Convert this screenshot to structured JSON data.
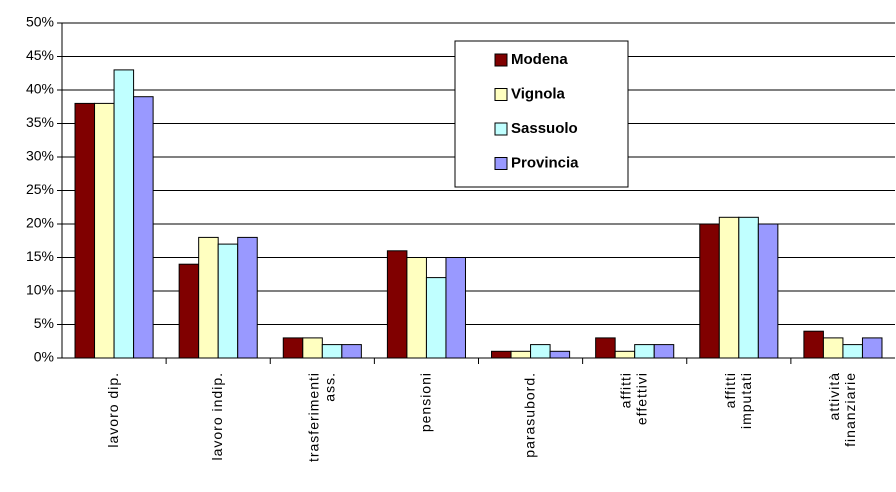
{
  "chart_data": {
    "type": "bar",
    "categories": [
      "lavoro dip.",
      "lavoro indip.",
      "trasferimenti\nass.",
      "pensioni",
      "parasubord.",
      "affitti\neffettivi",
      "affitti\nimputati",
      "attività\nfinanziarie"
    ],
    "series": [
      {
        "name": "Modena",
        "color": "#800000",
        "values": [
          38,
          14,
          3,
          16,
          1,
          3,
          20,
          4
        ]
      },
      {
        "name": "Vignola",
        "color": "#ffffc0",
        "values": [
          38,
          18,
          3,
          15,
          1,
          1,
          21,
          3
        ]
      },
      {
        "name": "Sassuolo",
        "color": "#c0ffff",
        "values": [
          43,
          17,
          2,
          12,
          2,
          2,
          21,
          2
        ]
      },
      {
        "name": "Provincia",
        "color": "#9999ff",
        "values": [
          39,
          18,
          2,
          15,
          1,
          2,
          20,
          3
        ]
      }
    ],
    "ylim": [
      0,
      50
    ],
    "yticks": [
      {
        "value": 0,
        "label": "0%"
      },
      {
        "value": 5,
        "label": "5%"
      },
      {
        "value": 10,
        "label": "10%"
      },
      {
        "value": 15,
        "label": "15%"
      },
      {
        "value": 20,
        "label": "20%"
      },
      {
        "value": 25,
        "label": "25%"
      },
      {
        "value": 30,
        "label": "30%"
      },
      {
        "value": 35,
        "label": "35%"
      },
      {
        "value": 40,
        "label": "40%"
      },
      {
        "value": 45,
        "label": "45%"
      },
      {
        "value": 50,
        "label": "50%"
      }
    ],
    "grid": true,
    "legend": "top-right"
  }
}
